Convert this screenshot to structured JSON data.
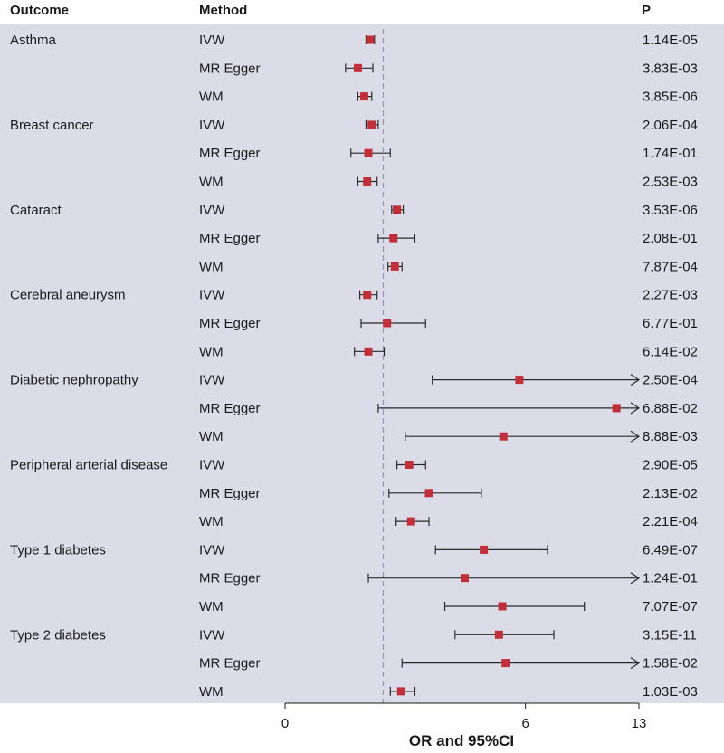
{
  "headers": {
    "outcome": "Outcome",
    "method": "Method",
    "p": "P"
  },
  "colors": {
    "panel": "#dcdce8",
    "point": "#c0303a",
    "ci": "#2a2a2a",
    "refline": "#9a9ab4"
  },
  "chart_data": {
    "type": "forest",
    "xlabel": "OR and 95%CI",
    "xlim": [
      0,
      13
    ],
    "xticks": [
      0,
      6,
      13
    ],
    "reference": 1,
    "rows": [
      {
        "outcome": "Asthma",
        "method": "IVW",
        "or": 0.75,
        "lo": 0.68,
        "hi": 0.83,
        "p": "1.14E-05"
      },
      {
        "outcome": "",
        "method": "MR Egger",
        "or": 0.55,
        "lo": 0.38,
        "hi": 0.8,
        "p": "3.83E-03"
      },
      {
        "outcome": "",
        "method": "WM",
        "or": 0.65,
        "lo": 0.55,
        "hi": 0.78,
        "p": "3.85E-06"
      },
      {
        "outcome": "Breast cancer",
        "method": "IVW",
        "or": 0.78,
        "lo": 0.68,
        "hi": 0.9,
        "p": "2.06E-04"
      },
      {
        "outcome": "",
        "method": "MR Egger",
        "or": 0.72,
        "lo": 0.45,
        "hi": 1.15,
        "p": "1.74E-01"
      },
      {
        "outcome": "",
        "method": "WM",
        "or": 0.7,
        "lo": 0.55,
        "hi": 0.88,
        "p": "2.53E-03"
      },
      {
        "outcome": "Cataract",
        "method": "IVW",
        "or": 1.3,
        "lo": 1.18,
        "hi": 1.45,
        "p": "3.53E-06"
      },
      {
        "outcome": "",
        "method": "MR Egger",
        "or": 1.22,
        "lo": 0.9,
        "hi": 1.75,
        "p": "2.08E-01"
      },
      {
        "outcome": "",
        "method": "WM",
        "or": 1.25,
        "lo": 1.1,
        "hi": 1.42,
        "p": "7.87E-04"
      },
      {
        "outcome": "Cerebral aneurysm",
        "method": "IVW",
        "or": 0.7,
        "lo": 0.58,
        "hi": 0.88,
        "p": "2.27E-03"
      },
      {
        "outcome": "",
        "method": "MR Egger",
        "or": 1.08,
        "lo": 0.6,
        "hi": 2.05,
        "p": "6.77E-01"
      },
      {
        "outcome": "",
        "method": "WM",
        "or": 0.72,
        "lo": 0.5,
        "hi": 1.02,
        "p": "6.14E-02"
      },
      {
        "outcome": "Diabetic nephropathy",
        "method": "IVW",
        "or": 5.7,
        "lo": 2.25,
        "hi": 14.4,
        "p": "2.50E-04"
      },
      {
        "outcome": "",
        "method": "MR Egger",
        "or": 11.4,
        "lo": 0.9,
        "hi": 144.0,
        "p": "6.88E-02"
      },
      {
        "outcome": "",
        "method": "WM",
        "or": 4.95,
        "lo": 1.5,
        "hi": 16.3,
        "p": "8.88E-03"
      },
      {
        "outcome": "Peripheral arterial disease",
        "method": "IVW",
        "or": 1.6,
        "lo": 1.3,
        "hi": 2.05,
        "p": "2.90E-05"
      },
      {
        "outcome": "",
        "method": "MR Egger",
        "or": 2.15,
        "lo": 1.12,
        "hi": 4.0,
        "p": "2.13E-02"
      },
      {
        "outcome": "",
        "method": "WM",
        "or": 1.65,
        "lo": 1.28,
        "hi": 2.15,
        "p": "2.21E-04"
      },
      {
        "outcome": "Type 1 diabetes",
        "method": "IVW",
        "or": 4.1,
        "lo": 2.35,
        "hi": 7.15,
        "p": "6.49E-07"
      },
      {
        "outcome": "",
        "method": "MR Egger",
        "or": 3.35,
        "lo": 0.72,
        "hi": 15.5,
        "p": "1.24E-01"
      },
      {
        "outcome": "",
        "method": "WM",
        "or": 4.9,
        "lo": 2.65,
        "hi": 9.3,
        "p": "7.07E-07"
      },
      {
        "outcome": "Type 2 diabetes",
        "method": "IVW",
        "or": 4.75,
        "lo": 3.0,
        "hi": 7.5,
        "p": "3.15E-11"
      },
      {
        "outcome": "",
        "method": "MR Egger",
        "or": 5.05,
        "lo": 1.42,
        "hi": 17.8,
        "p": "1.58E-02"
      },
      {
        "outcome": "",
        "method": "WM",
        "or": 1.4,
        "lo": 1.15,
        "hi": 1.75,
        "p": "1.03E-03"
      }
    ]
  }
}
